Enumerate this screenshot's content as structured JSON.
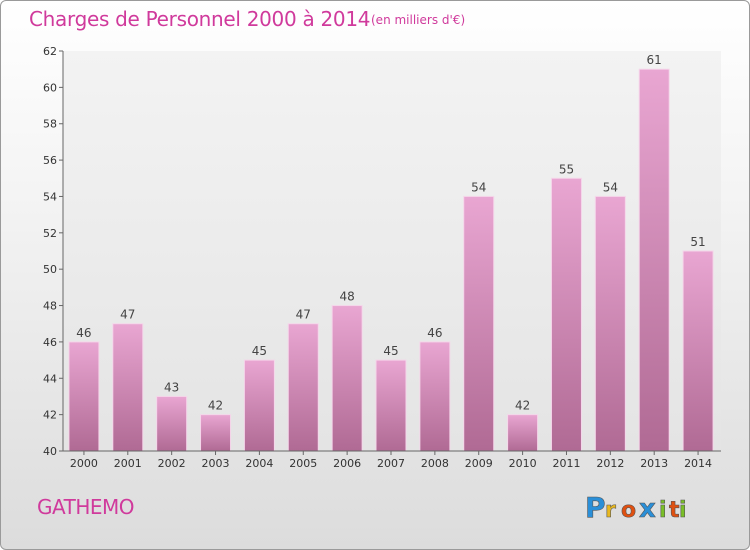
{
  "header": {
    "title": "Charges de Personnel 2000 à 2014",
    "subtitle": "(en milliers d'€)"
  },
  "footer": {
    "commune": "GATHEMO",
    "logo": {
      "letters": [
        "P",
        "r",
        "o",
        "x",
        "i",
        "t",
        "i"
      ],
      "colors": [
        "#2a8fd8",
        "#e8b820",
        "#e05010",
        "#2a8fd8",
        "#7abf28",
        "#e05010",
        "#7abf28"
      ]
    }
  },
  "chart_data": {
    "type": "bar",
    "categories": [
      "2000",
      "2001",
      "2002",
      "2003",
      "2004",
      "2005",
      "2006",
      "2007",
      "2008",
      "2009",
      "2010",
      "2011",
      "2012",
      "2013",
      "2014"
    ],
    "values": [
      46,
      47,
      43,
      42,
      45,
      47,
      48,
      45,
      46,
      54,
      42,
      55,
      54,
      61,
      51
    ],
    "title": "Charges de Personnel 2000 à 2014",
    "xlabel": "",
    "ylabel": "",
    "ylim": [
      40,
      62
    ],
    "yticks": [
      40,
      42,
      44,
      46,
      48,
      50,
      52,
      54,
      56,
      58,
      60,
      62
    ],
    "grid": false,
    "bar_color": "#d98cbc"
  }
}
